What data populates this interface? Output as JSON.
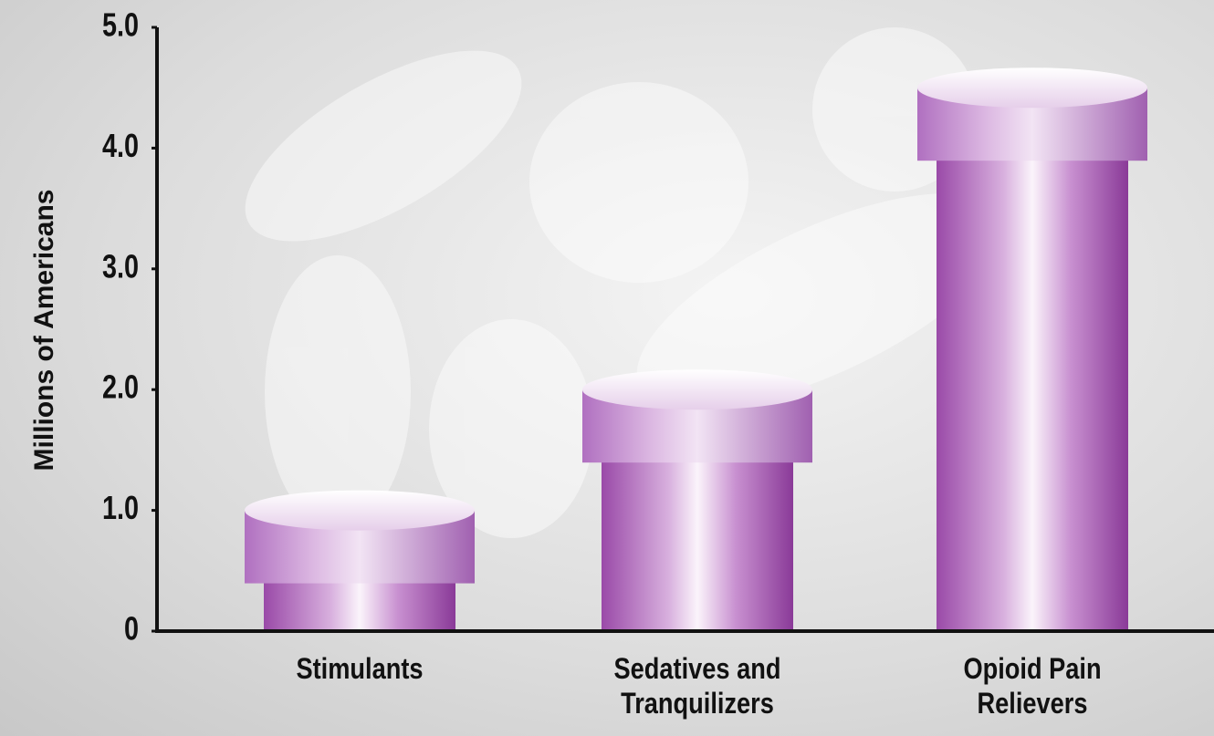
{
  "chart_data": {
    "type": "bar",
    "y_label": "Millions of Americans",
    "categories": [
      "Stimulants",
      "Sedatives and Tranquilizers",
      "Opioid Pain Relievers"
    ],
    "values": [
      1.0,
      2.0,
      4.5
    ],
    "color": "#b070c0",
    "ylim": [
      0,
      5
    ],
    "yticks": [
      0,
      {
        "value": 1,
        "label": "1.0"
      },
      {
        "value": 2,
        "label": "2.0"
      },
      {
        "value": 3,
        "label": "3.0"
      },
      {
        "value": 4,
        "label": "4.0"
      },
      {
        "value": 5,
        "label": "5.0"
      }
    ],
    "grid": false
  }
}
